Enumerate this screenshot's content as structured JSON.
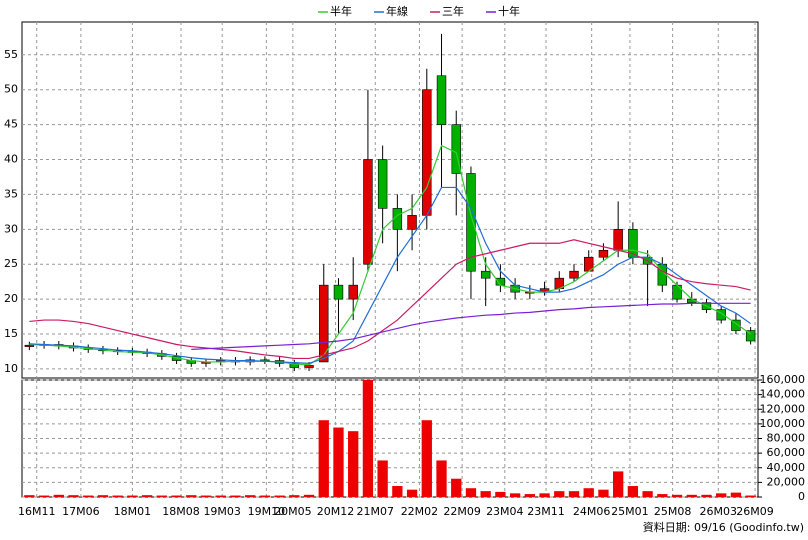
{
  "chart_data": [
    {
      "type": "candlestick",
      "legend": "top",
      "up_color": "#e00000",
      "down_color": "#00b000",
      "xlim": [
        -0.5,
        49.5
      ],
      "xticks": [
        {
          "value": 0.5,
          "label": "16M11"
        },
        {
          "value": 3.5,
          "label": "17M06"
        },
        {
          "value": 7.0,
          "label": "18M01"
        },
        {
          "value": 10.3,
          "label": "18M08"
        },
        {
          "value": 13.1,
          "label": "19M03"
        },
        {
          "value": 16.1,
          "label": "19M10"
        },
        {
          "value": 17.9,
          "label": "20M05"
        },
        {
          "value": 20.8,
          "label": "20M12"
        },
        {
          "value": 23.5,
          "label": "21M07"
        },
        {
          "value": 26.5,
          "label": "22M02"
        },
        {
          "value": 29.4,
          "label": "22M09"
        },
        {
          "value": 32.3,
          "label": "23M04"
        },
        {
          "value": 35.1,
          "label": "23M11"
        },
        {
          "value": 38.2,
          "label": "24M06"
        },
        {
          "value": 40.8,
          "label": "25M01"
        },
        {
          "value": 43.7,
          "label": "25M08"
        },
        {
          "value": 46.8,
          "label": "26M03"
        },
        {
          "value": 49.3,
          "label": "26M09"
        }
      ],
      "ylim": [
        8.7,
        59.7
      ],
      "yticks": [
        10,
        15,
        20,
        25,
        30,
        35,
        40,
        45,
        50,
        55
      ],
      "grid": true,
      "open": [
        13.2,
        13.4,
        13.5,
        13.3,
        13.0,
        12.8,
        12.6,
        12.5,
        12.4,
        12.2,
        11.8,
        11.2,
        10.8,
        11.0,
        11.2,
        11.0,
        11.3,
        11.2,
        10.8,
        10.2,
        11,
        22,
        20,
        25,
        40,
        33,
        30,
        32,
        52,
        45,
        38,
        24,
        23,
        22,
        21,
        21,
        21.5,
        23,
        24,
        26,
        27,
        30,
        26,
        25,
        22,
        20,
        19.5,
        18.5,
        17,
        15.5
      ],
      "high": [
        13.9,
        14.0,
        14.0,
        13.8,
        13.5,
        13.3,
        13.1,
        13.0,
        12.9,
        12.7,
        12.3,
        11.7,
        11.5,
        11.7,
        11.7,
        11.8,
        11.8,
        11.7,
        11.3,
        11.0,
        25,
        23,
        26,
        50,
        42,
        35,
        35,
        53,
        58,
        47,
        39,
        26,
        25,
        23,
        22,
        22.5,
        24,
        25,
        27,
        28,
        34,
        31,
        27,
        26,
        22.5,
        21,
        20,
        19,
        18,
        16
      ],
      "low": [
        12.7,
        12.9,
        12.8,
        12.5,
        12.3,
        12.1,
        12.0,
        11.9,
        11.7,
        11.3,
        10.7,
        10.3,
        10.3,
        10.5,
        10.5,
        10.5,
        10.7,
        10.3,
        9.7,
        9.7,
        11,
        15,
        17,
        24,
        28,
        24,
        27,
        30,
        36,
        32,
        20,
        19,
        21,
        20,
        20,
        20.5,
        21,
        22.5,
        24,
        25.5,
        26,
        25,
        19,
        21,
        19.5,
        19,
        18,
        16.5,
        15,
        13.5
      ],
      "close": [
        13.4,
        13.5,
        13.3,
        13.0,
        12.8,
        12.6,
        12.5,
        12.4,
        12.2,
        11.8,
        11.2,
        10.8,
        11.0,
        11.2,
        11.0,
        11.3,
        11.2,
        10.8,
        10.2,
        10.5,
        22,
        20,
        22,
        40,
        33,
        30,
        32,
        50,
        45,
        38,
        24,
        23,
        22,
        21,
        21,
        21.5,
        23,
        24,
        26,
        27,
        30,
        26,
        25,
        22,
        20,
        19.5,
        18.5,
        17,
        15.5,
        14
      ],
      "series": [
        {
          "name": "半年",
          "color": "#33cc33",
          "values": [
            13.5,
            13.4,
            13.3,
            13.1,
            12.9,
            12.7,
            12.5,
            12.4,
            12.3,
            12.0,
            11.6,
            11.2,
            11.0,
            11.0,
            11.1,
            11.1,
            11.1,
            11.0,
            10.7,
            10.6,
            12,
            15,
            18,
            24,
            30,
            32,
            33,
            36,
            42,
            41,
            32,
            25,
            22,
            21.5,
            21,
            21,
            21.5,
            22.5,
            24,
            25.5,
            27,
            27,
            26.5,
            24,
            22,
            20,
            19,
            18,
            16.5,
            15
          ]
        },
        {
          "name": "年線",
          "color": "#1f6fd6",
          "values": [
            13.6,
            13.5,
            13.4,
            13.3,
            13.1,
            12.9,
            12.7,
            12.6,
            12.4,
            12.2,
            11.9,
            11.6,
            11.4,
            11.3,
            11.2,
            11.2,
            11.1,
            11.0,
            10.9,
            10.8,
            11.5,
            12.5,
            14,
            18,
            22,
            26,
            29,
            32,
            36,
            36,
            33,
            28,
            24,
            22,
            21.5,
            21,
            21,
            21.5,
            22.5,
            23.5,
            25,
            26,
            26,
            25,
            23.5,
            22,
            20.5,
            19,
            18,
            16.5
          ]
        },
        {
          "name": "三年",
          "color": "#cc1a66",
          "values": [
            16.8,
            17,
            17,
            16.8,
            16.5,
            16,
            15.5,
            15,
            14.5,
            14,
            13.5,
            13.2,
            13,
            12.8,
            12.6,
            12.3,
            12,
            11.8,
            11.5,
            11.5,
            12,
            12.5,
            13,
            14,
            15.5,
            17,
            19,
            21,
            23,
            25,
            26,
            26.5,
            27,
            27.5,
            28,
            28,
            28,
            28.5,
            28,
            27.5,
            27,
            26.5,
            25.5,
            24,
            23,
            22.5,
            22.2,
            22,
            21.8,
            21.3
          ]
        },
        {
          "name": "十年",
          "color": "#7a1fd6",
          "values": [
            null,
            null,
            null,
            null,
            null,
            null,
            null,
            null,
            null,
            null,
            null,
            12.8,
            12.9,
            13,
            13.1,
            13.2,
            13.3,
            13.4,
            13.5,
            13.6,
            13.8,
            14,
            14.3,
            14.8,
            15.3,
            15.8,
            16.3,
            16.7,
            17,
            17.3,
            17.5,
            17.7,
            17.8,
            18,
            18.1,
            18.3,
            18.5,
            18.6,
            18.8,
            18.9,
            19,
            19.1,
            19.2,
            19.3,
            19.3,
            19.4,
            19.4,
            19.4,
            19.4,
            19.4
          ]
        }
      ]
    },
    {
      "type": "bar",
      "color": "#ee0000",
      "ylim": [
        0,
        160000
      ],
      "yticks": [
        0,
        {
          "value": 20000,
          "label": "20,000"
        },
        {
          "value": 40000,
          "label": "40,000"
        },
        {
          "value": 60000,
          "label": "60,000"
        },
        {
          "value": 80000,
          "label": "80,000"
        },
        {
          "value": 100000,
          "label": "100,000"
        },
        {
          "value": 120000,
          "label": "120,000"
        },
        {
          "value": 140000,
          "label": "140,000"
        },
        {
          "value": 160000,
          "label": "160,000"
        }
      ],
      "values": [
        2500,
        2000,
        3000,
        2500,
        2000,
        2500,
        2000,
        2000,
        2500,
        2000,
        2000,
        2500,
        2000,
        2000,
        2000,
        2500,
        2000,
        2000,
        2500,
        3000,
        105000,
        95000,
        90000,
        165000,
        50000,
        15000,
        10000,
        105000,
        50000,
        25000,
        12000,
        8000,
        7000,
        5000,
        4000,
        5000,
        8000,
        8000,
        12000,
        10000,
        35000,
        15000,
        8000,
        4000,
        3000,
        3000,
        3000,
        5000,
        6000,
        2000
      ],
      "footer": "資料日期: 09/16  (Goodinfo.tw)"
    }
  ]
}
